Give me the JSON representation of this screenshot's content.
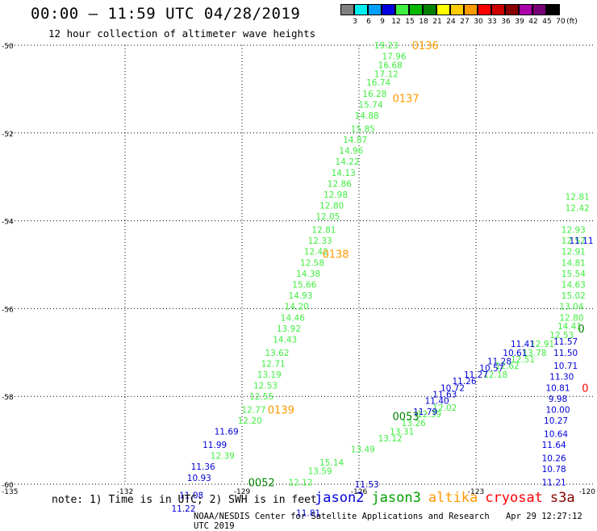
{
  "header": {
    "title": "00:00 – 11:59 UTC 04/28/2019",
    "subtitle": "12 hour collection of altimeter wave heights"
  },
  "color_scale": {
    "unit": "(ft)",
    "bins": [
      {
        "color": "#808080",
        "label": "3"
      },
      {
        "color": "#00f0f0",
        "label": "6"
      },
      {
        "color": "#00a0ff",
        "label": "9"
      },
      {
        "color": "#0000e0",
        "label": "12"
      },
      {
        "color": "#40ee40",
        "label": "15"
      },
      {
        "color": "#00b800",
        "label": "18"
      },
      {
        "color": "#008000",
        "label": "21"
      },
      {
        "color": "#ffff00",
        "label": "24"
      },
      {
        "color": "#ffcc00",
        "label": "27"
      },
      {
        "color": "#ff9900",
        "label": "30"
      },
      {
        "color": "#ff0000",
        "label": "33"
      },
      {
        "color": "#cc0000",
        "label": "36"
      },
      {
        "color": "#880000",
        "label": "39"
      },
      {
        "color": "#aa00aa",
        "label": "42"
      },
      {
        "color": "#770077",
        "label": "45"
      },
      {
        "color": "#000000",
        "label": "70"
      }
    ]
  },
  "chart_data": {
    "type": "scatter",
    "xlim": [
      -135,
      -120
    ],
    "ylim": [
      -60,
      -50
    ],
    "xticks": [
      -135,
      -132,
      -129,
      -126,
      -123,
      -120
    ],
    "xtick_labels": [
      "-135",
      "-132",
      "-129",
      "-126",
      "-123",
      "-120"
    ],
    "yticks": [
      -50,
      -52,
      -54,
      -56,
      -58,
      -60
    ],
    "ytick_labels": [
      "-50",
      "-52",
      "-54",
      "-56",
      "-58",
      "-60"
    ],
    "grid": true,
    "series": [
      {
        "name": "jason3",
        "color": "#40ee40",
        "points": [
          {
            "lon": -125.3,
            "lat": -50.0,
            "v": "19.23"
          },
          {
            "lon": -125.1,
            "lat": -50.25,
            "v": "17.96"
          },
          {
            "lon": -125.2,
            "lat": -50.45,
            "v": "16.68"
          },
          {
            "lon": -125.3,
            "lat": -50.65,
            "v": "17.12"
          },
          {
            "lon": -125.5,
            "lat": -50.85,
            "v": "16.74"
          },
          {
            "lon": -125.6,
            "lat": -51.1,
            "v": "16.28"
          },
          {
            "lon": -125.7,
            "lat": -51.35,
            "v": "15.74"
          },
          {
            "lon": -125.8,
            "lat": -51.6,
            "v": "14.88"
          },
          {
            "lon": -125.9,
            "lat": -51.9,
            "v": "15.85"
          },
          {
            "lon": -126.1,
            "lat": -52.15,
            "v": "14.87"
          },
          {
            "lon": -126.2,
            "lat": -52.4,
            "v": "14.96"
          },
          {
            "lon": -126.3,
            "lat": -52.65,
            "v": "14.22"
          },
          {
            "lon": -126.4,
            "lat": -52.9,
            "v": "14.13"
          },
          {
            "lon": -126.5,
            "lat": -53.15,
            "v": "12.86"
          },
          {
            "lon": -126.6,
            "lat": -53.4,
            "v": "12.98"
          },
          {
            "lon": -126.7,
            "lat": -53.65,
            "v": "12.80"
          },
          {
            "lon": -126.8,
            "lat": -53.9,
            "v": "12.05"
          },
          {
            "lon": -126.9,
            "lat": -54.2,
            "v": "12.81"
          },
          {
            "lon": -127.0,
            "lat": -54.45,
            "v": "12.33"
          },
          {
            "lon": -127.1,
            "lat": -54.7,
            "v": "12.42"
          },
          {
            "lon": -127.2,
            "lat": -54.95,
            "v": "12.58"
          },
          {
            "lon": -127.3,
            "lat": -55.2,
            "v": "14.38"
          },
          {
            "lon": -127.4,
            "lat": -55.45,
            "v": "15.66"
          },
          {
            "lon": -127.5,
            "lat": -55.7,
            "v": "14.93"
          },
          {
            "lon": -127.6,
            "lat": -55.95,
            "v": "14.20"
          },
          {
            "lon": -127.7,
            "lat": -56.2,
            "v": "14.46"
          },
          {
            "lon": -127.8,
            "lat": -56.45,
            "v": "13.92"
          },
          {
            "lon": -127.9,
            "lat": -56.7,
            "v": "14.43"
          },
          {
            "lon": -128.1,
            "lat": -57.0,
            "v": "13.62"
          },
          {
            "lon": -128.2,
            "lat": -57.25,
            "v": "12.71"
          },
          {
            "lon": -128.3,
            "lat": -57.5,
            "v": "13.19"
          },
          {
            "lon": -128.4,
            "lat": -57.75,
            "v": "12.53"
          },
          {
            "lon": -128.5,
            "lat": -58.0,
            "v": "12.55"
          },
          {
            "lon": -128.7,
            "lat": -58.3,
            "v": "12.77"
          },
          {
            "lon": -128.8,
            "lat": -58.55,
            "v": "12.20"
          },
          {
            "lon": -129.5,
            "lat": -59.35,
            "v": "12.39"
          },
          {
            "lon": -127.5,
            "lat": -59.95,
            "v": "12.12"
          },
          {
            "lon": -127.0,
            "lat": -59.7,
            "v": "13.59"
          },
          {
            "lon": -126.7,
            "lat": -59.5,
            "v": "15.14"
          },
          {
            "lon": -125.9,
            "lat": -59.2,
            "v": "13.49"
          },
          {
            "lon": -125.2,
            "lat": -58.95,
            "v": "13.12"
          },
          {
            "lon": -124.9,
            "lat": -58.8,
            "v": "13.31"
          },
          {
            "lon": -124.6,
            "lat": -58.6,
            "v": "13.26"
          },
          {
            "lon": -124.2,
            "lat": -58.4,
            "v": "12.39"
          },
          {
            "lon": -123.8,
            "lat": -58.25,
            "v": "12.02"
          },
          {
            "lon": -122.5,
            "lat": -57.5,
            "v": "12.18"
          },
          {
            "lon": -122.2,
            "lat": -57.3,
            "v": "12.62"
          },
          {
            "lon": -121.8,
            "lat": -57.15,
            "v": "12.51"
          },
          {
            "lon": -121.5,
            "lat": -57.0,
            "v": "13.78"
          },
          {
            "lon": -121.3,
            "lat": -56.8,
            "v": "12.91"
          },
          {
            "lon": -120.8,
            "lat": -56.6,
            "v": "12.53"
          },
          {
            "lon": -120.6,
            "lat": -56.4,
            "v": "14.41"
          },
          {
            "lon": -120.55,
            "lat": -56.2,
            "v": "12.80"
          },
          {
            "lon": -120.55,
            "lat": -55.95,
            "v": "13.04"
          },
          {
            "lon": -120.5,
            "lat": -55.7,
            "v": "15.02"
          },
          {
            "lon": -120.5,
            "lat": -55.45,
            "v": "14.63"
          },
          {
            "lon": -120.5,
            "lat": -55.2,
            "v": "15.54"
          },
          {
            "lon": -120.5,
            "lat": -54.95,
            "v": "14.81"
          },
          {
            "lon": -120.5,
            "lat": -54.7,
            "v": "12.91"
          },
          {
            "lon": -120.5,
            "lat": -54.45,
            "v": "12.52"
          },
          {
            "lon": -120.5,
            "lat": -54.2,
            "v": "12.93"
          },
          {
            "lon": -120.4,
            "lat": -53.7,
            "v": "12.42"
          },
          {
            "lon": -120.4,
            "lat": -53.45,
            "v": "12.81"
          }
        ]
      },
      {
        "name": "jason2",
        "color": "#0000d8",
        "points": [
          {
            "lon": -129.4,
            "lat": -58.8,
            "v": "11.69"
          },
          {
            "lon": -129.7,
            "lat": -59.1,
            "v": "11.99"
          },
          {
            "lon": -130.0,
            "lat": -59.6,
            "v": "11.36"
          },
          {
            "lon": -130.1,
            "lat": -59.85,
            "v": "10.93"
          },
          {
            "lon": -130.3,
            "lat": -60.25,
            "v": "11.08"
          },
          {
            "lon": -130.5,
            "lat": -60.55,
            "v": "11.22"
          },
          {
            "lon": -127.3,
            "lat": -60.65,
            "v": "11.81"
          },
          {
            "lon": -125.8,
            "lat": -60.0,
            "v": "11.53"
          },
          {
            "lon": -124.3,
            "lat": -58.35,
            "v": "11.79"
          },
          {
            "lon": -124.0,
            "lat": -58.1,
            "v": "11.40"
          },
          {
            "lon": -123.8,
            "lat": -57.95,
            "v": "11.63"
          },
          {
            "lon": -123.6,
            "lat": -57.8,
            "v": "10.72"
          },
          {
            "lon": -123.3,
            "lat": -57.65,
            "v": "11.26"
          },
          {
            "lon": -123.0,
            "lat": -57.5,
            "v": "11.27"
          },
          {
            "lon": -122.6,
            "lat": -57.35,
            "v": "10.57"
          },
          {
            "lon": -122.4,
            "lat": -57.2,
            "v": "11.28"
          },
          {
            "lon": -122.0,
            "lat": -57.0,
            "v": "10.61"
          },
          {
            "lon": -121.8,
            "lat": -56.8,
            "v": "11.41"
          },
          {
            "lon": -120.7,
            "lat": -56.75,
            "v": "11.57"
          },
          {
            "lon": -120.7,
            "lat": -57.0,
            "v": "11.50"
          },
          {
            "lon": -120.7,
            "lat": -57.3,
            "v": "10.71"
          },
          {
            "lon": -120.8,
            "lat": -57.55,
            "v": "11.30"
          },
          {
            "lon": -120.9,
            "lat": -57.8,
            "v": "10.81"
          },
          {
            "lon": -120.9,
            "lat": -58.05,
            "v": "9.98"
          },
          {
            "lon": -120.9,
            "lat": -58.3,
            "v": "10.00"
          },
          {
            "lon": -120.95,
            "lat": -58.55,
            "v": "10.27"
          },
          {
            "lon": -120.95,
            "lat": -58.85,
            "v": "10.64"
          },
          {
            "lon": -121.0,
            "lat": -59.1,
            "v": "11.64"
          },
          {
            "lon": -121.0,
            "lat": -59.4,
            "v": "10.26"
          },
          {
            "lon": -121.0,
            "lat": -59.65,
            "v": "10.78"
          },
          {
            "lon": -121.0,
            "lat": -59.95,
            "v": "11.21"
          },
          {
            "lon": -120.3,
            "lat": -54.45,
            "v": "11.11"
          }
        ]
      }
    ],
    "time_labels": [
      {
        "lon": -124.3,
        "lat": -50.0,
        "text": "0136",
        "color": "#ff9900"
      },
      {
        "lon": -124.8,
        "lat": -51.2,
        "text": "0137",
        "color": "#ff9900"
      },
      {
        "lon": -126.6,
        "lat": -54.75,
        "text": "0138",
        "color": "#ff9900"
      },
      {
        "lon": -128.0,
        "lat": -58.3,
        "text": "0139",
        "color": "#ff9900"
      },
      {
        "lon": -124.8,
        "lat": -58.45,
        "text": "0053",
        "color": "#008000"
      },
      {
        "lon": -128.5,
        "lat": -59.95,
        "text": "0052",
        "color": "#008000"
      },
      {
        "lon": -120.3,
        "lat": -56.45,
        "text": "0",
        "color": "#008000"
      },
      {
        "lon": -120.2,
        "lat": -57.8,
        "text": "0",
        "color": "#ff0000"
      }
    ]
  },
  "notes": {
    "units_note": "note: 1) Time is in UTC; 2) SWH is in feet",
    "satellites": [
      {
        "name": "jason2",
        "color": "#0000d8"
      },
      {
        "name": "jason3",
        "color": "#00a000"
      },
      {
        "name": "altika",
        "color": "#ff9900"
      },
      {
        "name": "cryosat",
        "color": "#ff0000"
      },
      {
        "name": "s3a",
        "color": "#880000"
      }
    ]
  },
  "footer": {
    "credit": "NOAA/NESDIS Center for Satellite Applications and Research",
    "timestamp": "Apr 29 12:27:12 UTC 2019"
  }
}
